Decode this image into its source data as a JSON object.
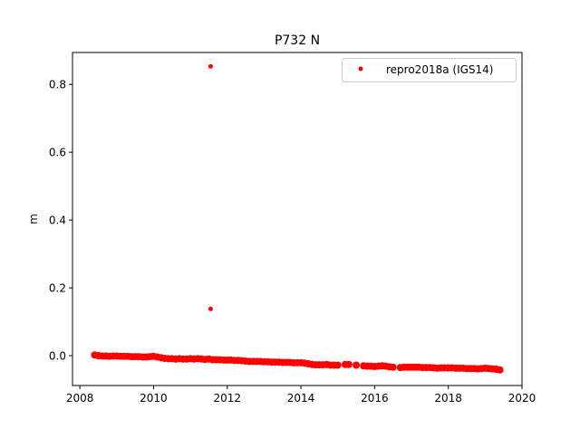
{
  "chart_data": {
    "type": "scatter",
    "title": "P732 N",
    "xlabel": "",
    "ylabel": "m",
    "xlim": [
      2007.8,
      2020.0
    ],
    "ylim": [
      -0.088,
      0.894
    ],
    "xticks": [
      2008,
      2010,
      2012,
      2014,
      2016,
      2018,
      2020
    ],
    "xtick_labels": [
      "2008",
      "2010",
      "2012",
      "2014",
      "2016",
      "2018",
      "2020"
    ],
    "yticks": [
      0.0,
      0.2,
      0.4,
      0.6,
      0.8
    ],
    "ytick_labels": [
      "0.0",
      "0.2",
      "0.4",
      "0.6",
      "0.8"
    ],
    "grid": false,
    "legend": {
      "placement": "top-right",
      "entries": [
        "repro2018a (IGS14)"
      ]
    },
    "series": [
      {
        "name": "repro2018a (IGS14)",
        "color": "#ff0000",
        "marker": "dot",
        "points": [
          [
            2008.4,
            0.002
          ],
          [
            2008.5,
            0.0
          ],
          [
            2008.6,
            -0.001
          ],
          [
            2008.7,
            -0.001
          ],
          [
            2008.8,
            -0.002
          ],
          [
            2008.9,
            -0.001
          ],
          [
            2009.0,
            -0.001
          ],
          [
            2009.1,
            -0.002
          ],
          [
            2009.2,
            -0.002
          ],
          [
            2009.3,
            -0.002
          ],
          [
            2009.4,
            -0.003
          ],
          [
            2009.5,
            -0.003
          ],
          [
            2009.6,
            -0.003
          ],
          [
            2009.7,
            -0.004
          ],
          [
            2009.8,
            -0.004
          ],
          [
            2009.9,
            -0.003
          ],
          [
            2010.0,
            -0.002
          ],
          [
            2010.1,
            -0.004
          ],
          [
            2010.2,
            -0.006
          ],
          [
            2010.3,
            -0.008
          ],
          [
            2010.4,
            -0.009
          ],
          [
            2010.5,
            -0.009
          ],
          [
            2010.6,
            -0.01
          ],
          [
            2010.7,
            -0.009
          ],
          [
            2010.8,
            -0.01
          ],
          [
            2010.9,
            -0.01
          ],
          [
            2011.0,
            -0.009
          ],
          [
            2011.1,
            -0.01
          ],
          [
            2011.2,
            -0.009
          ],
          [
            2011.3,
            -0.01
          ],
          [
            2011.4,
            -0.011
          ],
          [
            2011.5,
            -0.01
          ],
          [
            2011.55,
            0.853
          ],
          [
            2011.55,
            0.138
          ],
          [
            2011.6,
            -0.012
          ],
          [
            2011.7,
            -0.012
          ],
          [
            2011.8,
            -0.012
          ],
          [
            2011.9,
            -0.013
          ],
          [
            2012.0,
            -0.013
          ],
          [
            2012.1,
            -0.013
          ],
          [
            2012.2,
            -0.014
          ],
          [
            2012.3,
            -0.014
          ],
          [
            2012.4,
            -0.015
          ],
          [
            2012.5,
            -0.016
          ],
          [
            2012.6,
            -0.017
          ],
          [
            2012.7,
            -0.017
          ],
          [
            2012.8,
            -0.017
          ],
          [
            2012.9,
            -0.017
          ],
          [
            2013.0,
            -0.018
          ],
          [
            2013.1,
            -0.018
          ],
          [
            2013.2,
            -0.019
          ],
          [
            2013.3,
            -0.019
          ],
          [
            2013.4,
            -0.019
          ],
          [
            2013.5,
            -0.02
          ],
          [
            2013.6,
            -0.02
          ],
          [
            2013.7,
            -0.02
          ],
          [
            2013.8,
            -0.021
          ],
          [
            2013.9,
            -0.021
          ],
          [
            2014.0,
            -0.021
          ],
          [
            2014.1,
            -0.022
          ],
          [
            2014.2,
            -0.024
          ],
          [
            2014.3,
            -0.026
          ],
          [
            2014.4,
            -0.027
          ],
          [
            2014.5,
            -0.027
          ],
          [
            2014.6,
            -0.027
          ],
          [
            2014.7,
            -0.026
          ],
          [
            2014.8,
            -0.028
          ],
          [
            2014.9,
            -0.028
          ],
          [
            2015.0,
            -0.028
          ],
          [
            2015.2,
            -0.026
          ],
          [
            2015.3,
            -0.026
          ],
          [
            2015.5,
            -0.028
          ],
          [
            2015.7,
            -0.03
          ],
          [
            2015.8,
            -0.031
          ],
          [
            2015.9,
            -0.031
          ],
          [
            2016.0,
            -0.032
          ],
          [
            2016.1,
            -0.031
          ],
          [
            2016.2,
            -0.03
          ],
          [
            2016.3,
            -0.031
          ],
          [
            2016.4,
            -0.033
          ],
          [
            2016.5,
            -0.034
          ],
          [
            2016.7,
            -0.035
          ],
          [
            2016.8,
            -0.034
          ],
          [
            2016.9,
            -0.034
          ],
          [
            2017.0,
            -0.034
          ],
          [
            2017.1,
            -0.034
          ],
          [
            2017.2,
            -0.034
          ],
          [
            2017.3,
            -0.035
          ],
          [
            2017.4,
            -0.035
          ],
          [
            2017.5,
            -0.035
          ],
          [
            2017.6,
            -0.036
          ],
          [
            2017.7,
            -0.037
          ],
          [
            2017.8,
            -0.036
          ],
          [
            2017.9,
            -0.036
          ],
          [
            2018.0,
            -0.036
          ],
          [
            2018.1,
            -0.036
          ],
          [
            2018.2,
            -0.037
          ],
          [
            2018.3,
            -0.037
          ],
          [
            2018.4,
            -0.037
          ],
          [
            2018.5,
            -0.038
          ],
          [
            2018.6,
            -0.038
          ],
          [
            2018.7,
            -0.038
          ],
          [
            2018.8,
            -0.039
          ],
          [
            2018.9,
            -0.038
          ],
          [
            2019.0,
            -0.037
          ],
          [
            2019.1,
            -0.038
          ],
          [
            2019.2,
            -0.039
          ],
          [
            2019.3,
            -0.04
          ],
          [
            2019.4,
            -0.042
          ]
        ]
      }
    ]
  }
}
